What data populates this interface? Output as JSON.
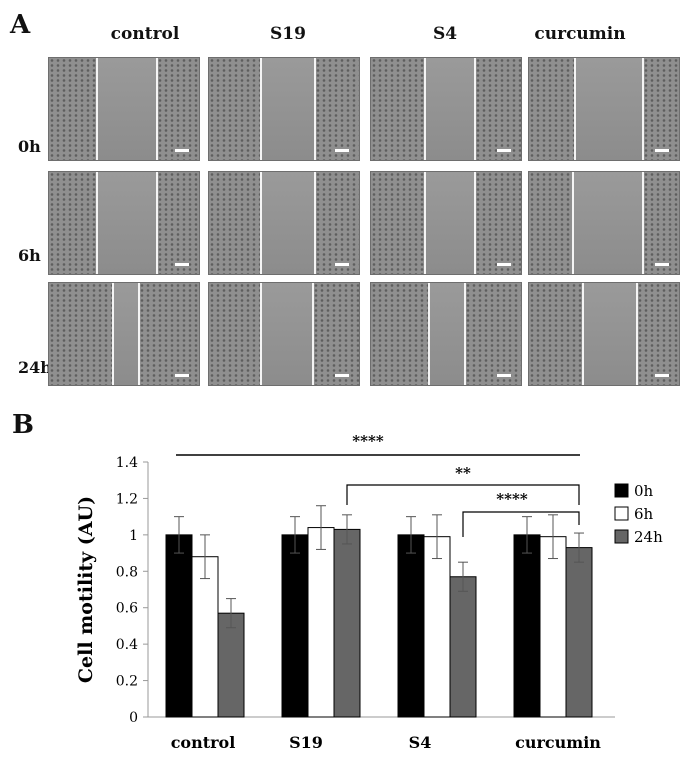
{
  "panel_a": {
    "letter": "A",
    "columns": [
      "control",
      "S19",
      "S4",
      "curcumin"
    ],
    "rows": [
      "0h",
      "6h",
      "24h"
    ]
  },
  "panel_b": {
    "letter": "B"
  },
  "chart_data": {
    "type": "bar",
    "categories": [
      "control",
      "S19",
      "S4",
      "curcumin"
    ],
    "ylabel": "Cell motility (AU)",
    "xlabel": "",
    "ylim": [
      0,
      1.4
    ],
    "yticks": [
      "0",
      "0.2",
      "0.4",
      "0.6",
      "0.8",
      "1",
      "1.2",
      "1.4"
    ],
    "grid": false,
    "legend_position": "right",
    "series": [
      {
        "name": "0h",
        "color": "#000000",
        "values": [
          1.0,
          1.0,
          1.0,
          1.0
        ],
        "errors": [
          0.1,
          0.1,
          0.1,
          0.1
        ]
      },
      {
        "name": "6h",
        "color": "#ffffff",
        "values": [
          0.88,
          1.04,
          0.99,
          0.99
        ],
        "errors": [
          0.12,
          0.12,
          0.12,
          0.12
        ]
      },
      {
        "name": "24h",
        "color": "#666666",
        "values": [
          0.57,
          1.03,
          0.77,
          0.93
        ],
        "errors": [
          0.08,
          0.08,
          0.08,
          0.08
        ]
      }
    ],
    "significance": [
      {
        "label": "****",
        "from": "control",
        "to": "curcumin"
      },
      {
        "label": "**",
        "from": "S19 24h",
        "to": "curcumin 24h"
      },
      {
        "label": "****",
        "from": "S4 24h",
        "to": "curcumin 24h"
      }
    ]
  }
}
